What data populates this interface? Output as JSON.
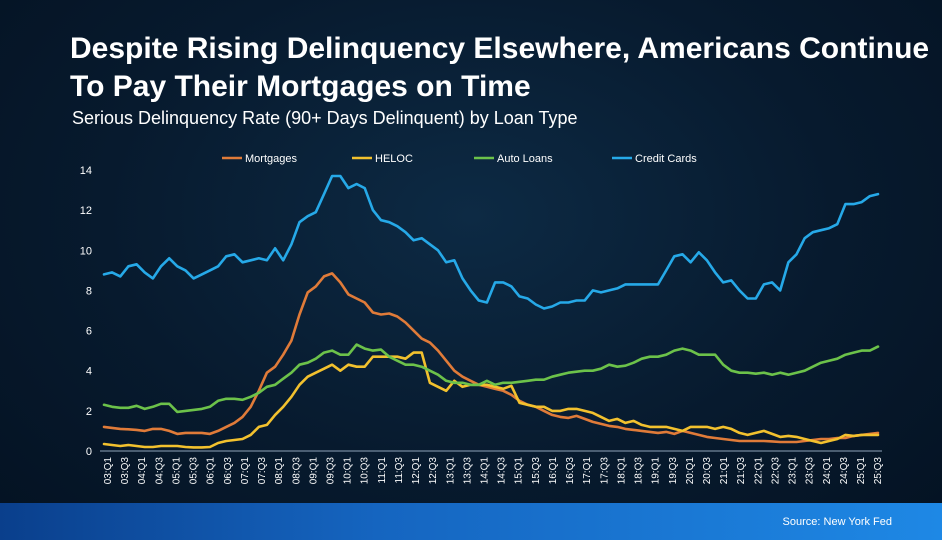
{
  "header": {
    "title": "Despite Rising Delinquency Elsewhere, Americans Continue To Pay Their Mortgages on Time",
    "subtitle": "Serious Delinquency Rate (90+ Days Delinquent) by Loan Type"
  },
  "footer": {
    "source": "Source: New York Fed"
  },
  "chart_data": {
    "type": "line",
    "title": "",
    "xlabel": "",
    "ylabel": "",
    "ylim": [
      0,
      14
    ],
    "yticks": [
      0,
      2,
      4,
      6,
      8,
      10,
      12,
      14
    ],
    "grid": false,
    "legend": "top",
    "x_tick_labels": [
      "03:Q1",
      "03:Q3",
      "04:Q1",
      "04:Q3",
      "05:Q1",
      "05:Q3",
      "06:Q1",
      "06:Q3",
      "07:Q1",
      "07:Q3",
      "08:Q1",
      "08:Q3",
      "09:Q1",
      "09:Q3",
      "10:Q1",
      "10:Q3",
      "11:Q1",
      "11:Q3",
      "12:Q1",
      "12:Q3",
      "13:Q1",
      "13:Q3",
      "14:Q1",
      "14:Q3",
      "15:Q1",
      "15:Q3",
      "16:Q1",
      "16:Q3",
      "17:Q1",
      "17:Q3",
      "18:Q1",
      "18:Q3",
      "19:Q1",
      "19:Q3",
      "20:Q1",
      "20:Q3",
      "21:Q1",
      "21:Q3",
      "22:Q1",
      "22:Q3",
      "23:Q1",
      "23:Q3",
      "24:Q1",
      "24:Q3",
      "25:Q1",
      "25:Q3"
    ],
    "series": [
      {
        "name": "Mortgages",
        "color": "#e07b39",
        "values": [
          1.2,
          1.15,
          1.1,
          1.08,
          1.05,
          1.0,
          1.1,
          1.1,
          1.0,
          0.85,
          0.9,
          0.9,
          0.9,
          0.85,
          1.0,
          1.2,
          1.4,
          1.7,
          2.2,
          3.0,
          3.9,
          4.2,
          4.8,
          5.5,
          6.8,
          7.9,
          8.2,
          8.7,
          8.85,
          8.4,
          7.8,
          7.6,
          7.4,
          6.9,
          6.8,
          6.85,
          6.7,
          6.4,
          6.0,
          5.6,
          5.4,
          5.0,
          4.5,
          4.0,
          3.7,
          3.5,
          3.3,
          3.2,
          3.1,
          3.0,
          2.8,
          2.5,
          2.3,
          2.2,
          2.0,
          1.8,
          1.7,
          1.65,
          1.75,
          1.6,
          1.45,
          1.35,
          1.25,
          1.2,
          1.1,
          1.05,
          1.0,
          0.95,
          0.9,
          0.95,
          0.85,
          1.0,
          0.9,
          0.8,
          0.7,
          0.65,
          0.6,
          0.55,
          0.5,
          0.5,
          0.5,
          0.5,
          0.48,
          0.45,
          0.45,
          0.45,
          0.5,
          0.55,
          0.6,
          0.6,
          0.65,
          0.65,
          0.75,
          0.8,
          0.85,
          0.9
        ]
      },
      {
        "name": "HELOC",
        "color": "#f2c12e",
        "values": [
          0.35,
          0.3,
          0.25,
          0.3,
          0.25,
          0.2,
          0.2,
          0.25,
          0.25,
          0.25,
          0.2,
          0.18,
          0.18,
          0.2,
          0.4,
          0.5,
          0.55,
          0.6,
          0.8,
          1.2,
          1.3,
          1.8,
          2.2,
          2.7,
          3.3,
          3.7,
          3.9,
          4.1,
          4.3,
          4.0,
          4.3,
          4.2,
          4.2,
          4.7,
          4.7,
          4.7,
          4.7,
          4.6,
          4.9,
          4.9,
          3.4,
          3.2,
          3.0,
          3.5,
          3.2,
          3.3,
          3.3,
          3.3,
          3.2,
          3.1,
          3.25,
          2.4,
          2.3,
          2.2,
          2.2,
          2.0,
          2.0,
          2.1,
          2.1,
          2.0,
          1.9,
          1.7,
          1.5,
          1.6,
          1.4,
          1.5,
          1.3,
          1.2,
          1.2,
          1.2,
          1.1,
          1.0,
          1.2,
          1.2,
          1.2,
          1.1,
          1.2,
          1.1,
          0.9,
          0.8,
          0.9,
          1.0,
          0.85,
          0.7,
          0.75,
          0.7,
          0.6,
          0.5,
          0.4,
          0.5,
          0.6,
          0.8,
          0.75,
          0.8,
          0.8,
          0.8
        ]
      },
      {
        "name": "Auto Loans",
        "color": "#6cc24a",
        "values": [
          2.3,
          2.2,
          2.15,
          2.15,
          2.25,
          2.1,
          2.2,
          2.35,
          2.35,
          1.95,
          2.0,
          2.05,
          2.1,
          2.2,
          2.5,
          2.6,
          2.6,
          2.55,
          2.7,
          2.9,
          3.2,
          3.3,
          3.6,
          3.9,
          4.3,
          4.4,
          4.6,
          4.9,
          5.0,
          4.8,
          4.8,
          5.3,
          5.1,
          5.0,
          5.05,
          4.7,
          4.5,
          4.3,
          4.3,
          4.2,
          4.0,
          3.8,
          3.5,
          3.4,
          3.4,
          3.3,
          3.3,
          3.5,
          3.3,
          3.4,
          3.4,
          3.45,
          3.5,
          3.55,
          3.55,
          3.7,
          3.8,
          3.9,
          3.95,
          4.0,
          4.0,
          4.1,
          4.3,
          4.2,
          4.25,
          4.4,
          4.6,
          4.7,
          4.7,
          4.8,
          5.0,
          5.1,
          5.0,
          4.8,
          4.8,
          4.8,
          4.3,
          4.0,
          3.9,
          3.9,
          3.85,
          3.9,
          3.8,
          3.9,
          3.8,
          3.9,
          4.0,
          4.2,
          4.4,
          4.5,
          4.6,
          4.8,
          4.9,
          5.0,
          5.0,
          5.2
        ]
      },
      {
        "name": "Credit Cards",
        "color": "#26a9e8",
        "values": [
          8.8,
          8.9,
          8.7,
          9.2,
          9.3,
          8.9,
          8.6,
          9.2,
          9.6,
          9.2,
          9.0,
          8.6,
          8.8,
          9.0,
          9.2,
          9.7,
          9.8,
          9.4,
          9.5,
          9.6,
          9.5,
          10.1,
          9.5,
          10.3,
          11.4,
          11.7,
          11.9,
          12.8,
          13.7,
          13.7,
          13.1,
          13.3,
          13.1,
          12.0,
          11.5,
          11.4,
          11.2,
          10.9,
          10.5,
          10.6,
          10.3,
          10.0,
          9.4,
          9.5,
          8.6,
          8.0,
          7.5,
          7.4,
          8.4,
          8.4,
          8.2,
          7.7,
          7.6,
          7.3,
          7.1,
          7.2,
          7.4,
          7.4,
          7.5,
          7.5,
          8.0,
          7.9,
          8.0,
          8.1,
          8.3,
          8.3,
          8.3,
          8.3,
          8.3,
          9.0,
          9.7,
          9.8,
          9.4,
          9.9,
          9.5,
          8.9,
          8.4,
          8.5,
          8.0,
          7.6,
          7.6,
          8.3,
          8.4,
          8.0,
          9.4,
          9.8,
          10.6,
          10.9,
          11.0,
          11.1,
          11.3,
          12.3,
          12.3,
          12.4,
          12.7,
          12.8
        ]
      }
    ]
  }
}
